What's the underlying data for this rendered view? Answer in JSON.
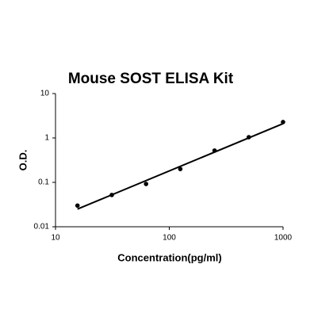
{
  "chart_data": {
    "type": "scatter",
    "title": "Mouse SOST ELISA Kit",
    "x_label": "Concentration(pg/ml)",
    "y_label": "O.D.",
    "x": [
      15.6,
      31.25,
      62.5,
      125,
      250,
      500,
      1000
    ],
    "values": [
      0.03,
      0.052,
      0.092,
      0.2,
      0.52,
      1.04,
      2.28
    ],
    "color": "#000000",
    "fit": {
      "x": [
        15.6,
        1000
      ],
      "y": [
        0.025,
        2.1
      ]
    },
    "xlim": [
      10,
      1000
    ],
    "ylim": [
      0.01,
      10
    ],
    "xticks": [
      10,
      100,
      1000
    ],
    "yticks": [
      0.01,
      0.1,
      1,
      10
    ],
    "xlog": true,
    "ylog": true
  }
}
